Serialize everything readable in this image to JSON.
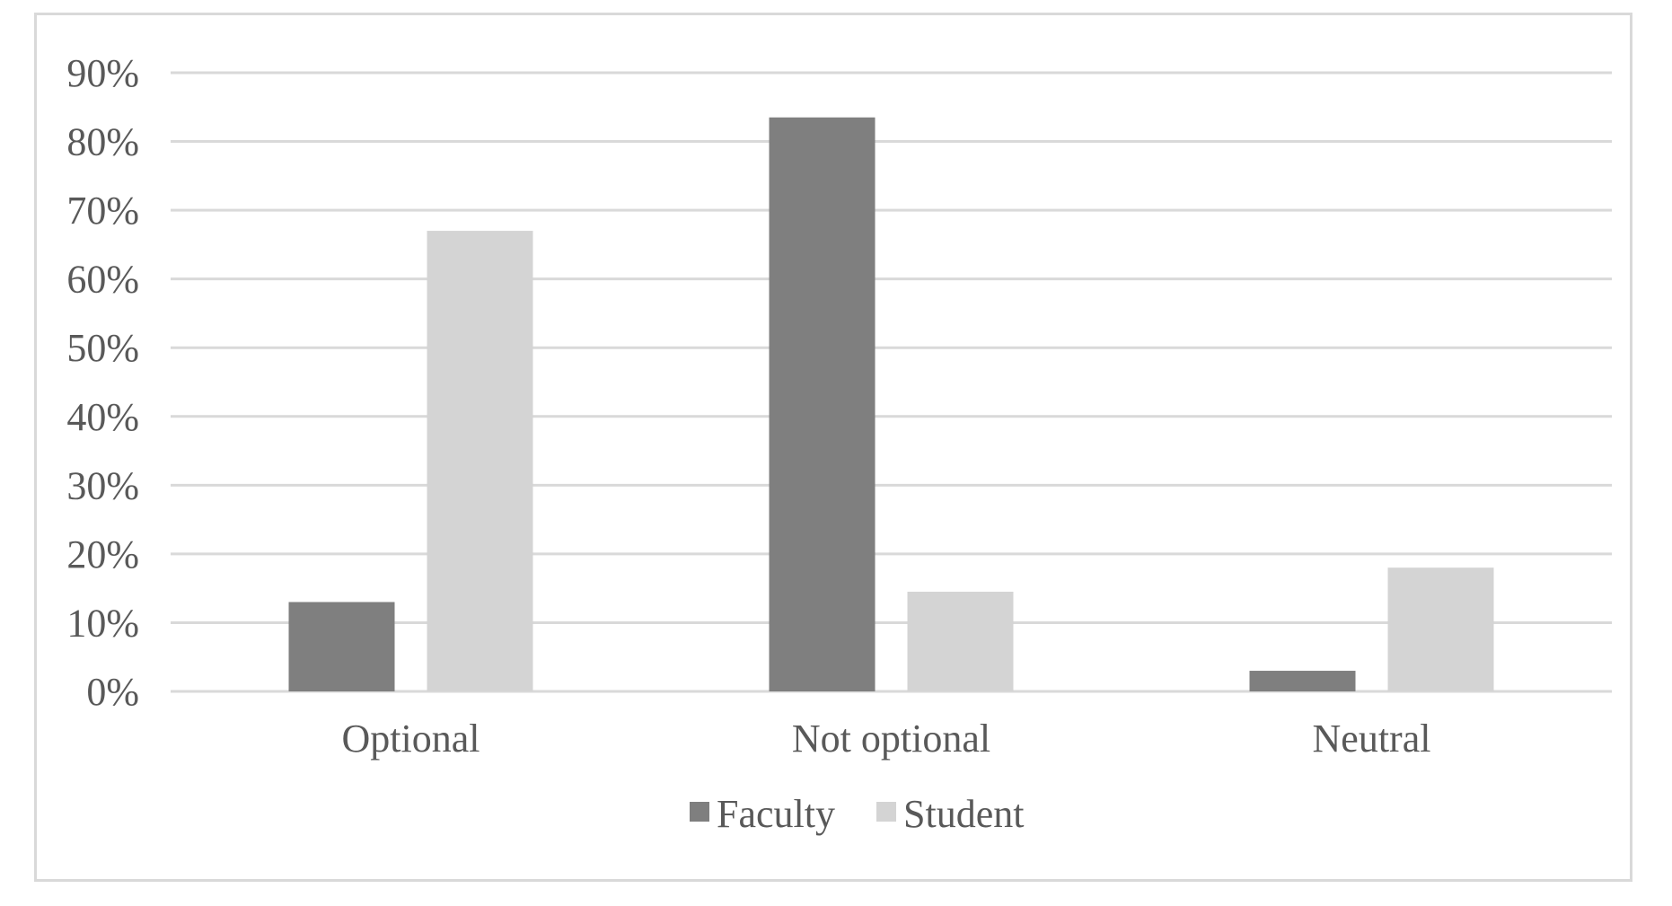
{
  "chart_data": {
    "type": "bar",
    "categories": [
      "Optional",
      "Not optional",
      "Neutral"
    ],
    "series": [
      {
        "name": "Faculty",
        "values": [
          13,
          83.5,
          3
        ],
        "color": "#7f7f7f"
      },
      {
        "name": "Student",
        "values": [
          67,
          14.5,
          18
        ],
        "color": "#d4d4d4"
      }
    ],
    "y_ticks": [
      "0%",
      "10%",
      "20%",
      "30%",
      "40%",
      "50%",
      "60%",
      "70%",
      "80%",
      "90%"
    ],
    "ylim": [
      0,
      90
    ],
    "y_unit": "%",
    "grid": true,
    "grid_color": "#d9d9d9",
    "legend_position": "bottom-center",
    "title": "",
    "xlabel": "",
    "ylabel": ""
  }
}
